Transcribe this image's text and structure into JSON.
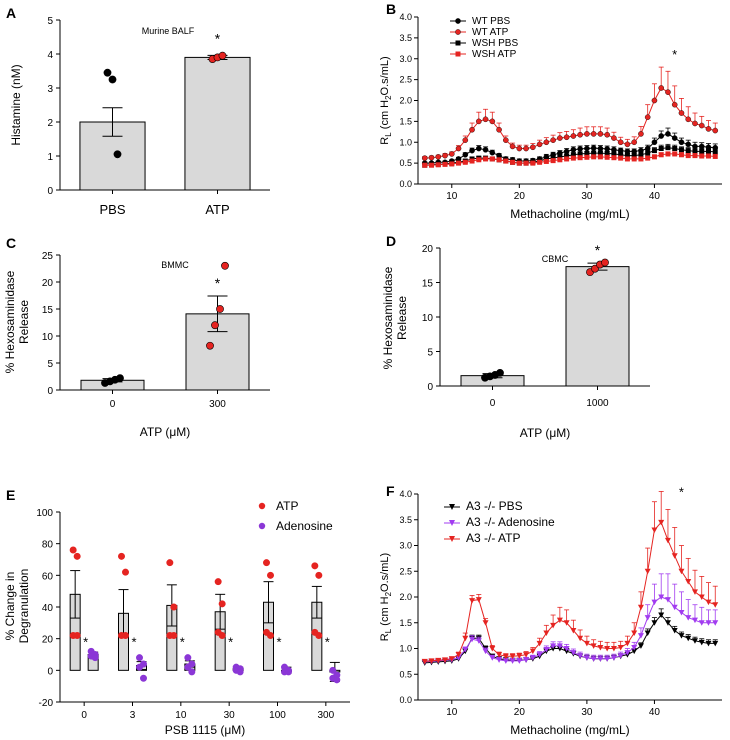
{
  "chart_data": [
    {
      "panel": "A",
      "type": "bar",
      "title": "Murine BALF",
      "ylabel": "Histamine (nM)",
      "xlabel": "",
      "ylim": [
        0,
        5
      ],
      "yticks": [
        0,
        1,
        2,
        3,
        4,
        5
      ],
      "categories": [
        "PBS",
        "ATP"
      ],
      "values": [
        2.0,
        3.9
      ],
      "errors": [
        0.42,
        0.06
      ],
      "points": [
        [
          3.45,
          3.25,
          1.05
        ],
        [
          3.85,
          3.9,
          3.95
        ]
      ],
      "point_colors": [
        "#000000",
        "#e52421"
      ],
      "annotations": [
        "",
        "*"
      ]
    },
    {
      "panel": "B",
      "type": "line",
      "title": "",
      "ylabel_main": "R",
      "ylabel_sub": "L",
      "ylabel_rest": " (cm H",
      "ylabel_sub2": "2",
      "ylabel_end": "O.s/mL)",
      "xlabel": "Methacholine (mg/mL)",
      "xlim": [
        5,
        50
      ],
      "ylim": [
        0,
        4.0
      ],
      "xticks": [
        10,
        20,
        30,
        40
      ],
      "yticks": [
        "0.0",
        "0.5",
        "1.0",
        "1.5",
        "2.0",
        "2.5",
        "3.0",
        "3.5",
        "4.0"
      ],
      "x": [
        6,
        7,
        8,
        9,
        10,
        11,
        12,
        13,
        14,
        15,
        16,
        17,
        18,
        19,
        20,
        21,
        22,
        23,
        24,
        25,
        26,
        27,
        28,
        29,
        30,
        31,
        32,
        33,
        34,
        35,
        36,
        37,
        38,
        39,
        40,
        41,
        42,
        43,
        44,
        45,
        46,
        47,
        48,
        49
      ],
      "series": [
        {
          "name": "WT PBS",
          "color": "#000000",
          "marker": "circle",
          "values": [
            0.5,
            0.5,
            0.52,
            0.52,
            0.55,
            0.6,
            0.7,
            0.8,
            0.85,
            0.82,
            0.75,
            0.68,
            0.6,
            0.58,
            0.55,
            0.55,
            0.56,
            0.6,
            0.65,
            0.7,
            0.74,
            0.78,
            0.82,
            0.84,
            0.85,
            0.86,
            0.85,
            0.84,
            0.82,
            0.8,
            0.78,
            0.78,
            0.8,
            0.85,
            1.0,
            1.15,
            1.2,
            1.1,
            1.0,
            0.95,
            0.9,
            0.9,
            0.88,
            0.87
          ],
          "errors": [
            0.03,
            0.03,
            0.03,
            0.03,
            0.03,
            0.04,
            0.05,
            0.06,
            0.07,
            0.07,
            0.06,
            0.05,
            0.05,
            0.05,
            0.05,
            0.05,
            0.05,
            0.05,
            0.06,
            0.06,
            0.06,
            0.07,
            0.07,
            0.07,
            0.07,
            0.07,
            0.07,
            0.07,
            0.07,
            0.06,
            0.06,
            0.06,
            0.07,
            0.08,
            0.1,
            0.12,
            0.14,
            0.12,
            0.1,
            0.1,
            0.1,
            0.09,
            0.09,
            0.09
          ]
        },
        {
          "name": "WT ATP",
          "color": "#e52421",
          "marker": "circle",
          "values": [
            0.62,
            0.63,
            0.65,
            0.68,
            0.72,
            0.85,
            1.05,
            1.3,
            1.5,
            1.55,
            1.5,
            1.3,
            1.05,
            0.9,
            0.85,
            0.85,
            0.88,
            0.95,
            1.0,
            1.05,
            1.1,
            1.12,
            1.15,
            1.18,
            1.2,
            1.2,
            1.2,
            1.18,
            1.1,
            1.0,
            0.95,
            1.0,
            1.2,
            1.6,
            2.0,
            2.3,
            2.2,
            1.9,
            1.7,
            1.55,
            1.45,
            1.4,
            1.32,
            1.28
          ],
          "errors": [
            0.04,
            0.04,
            0.04,
            0.05,
            0.05,
            0.07,
            0.1,
            0.16,
            0.22,
            0.24,
            0.22,
            0.16,
            0.1,
            0.08,
            0.08,
            0.08,
            0.09,
            0.1,
            0.11,
            0.12,
            0.13,
            0.14,
            0.15,
            0.16,
            0.17,
            0.17,
            0.17,
            0.16,
            0.14,
            0.12,
            0.12,
            0.13,
            0.18,
            0.3,
            0.4,
            0.5,
            0.5,
            0.45,
            0.35,
            0.3,
            0.25,
            0.22,
            0.2,
            0.18
          ]
        },
        {
          "name": "WSH PBS",
          "color": "#000000",
          "marker": "square",
          "values": [
            0.45,
            0.46,
            0.47,
            0.48,
            0.5,
            0.52,
            0.55,
            0.6,
            0.62,
            0.62,
            0.6,
            0.58,
            0.55,
            0.52,
            0.5,
            0.5,
            0.52,
            0.55,
            0.6,
            0.62,
            0.65,
            0.67,
            0.7,
            0.72,
            0.73,
            0.74,
            0.74,
            0.73,
            0.72,
            0.7,
            0.68,
            0.68,
            0.7,
            0.74,
            0.8,
            0.85,
            0.87,
            0.85,
            0.82,
            0.8,
            0.78,
            0.78,
            0.78,
            0.77
          ],
          "errors": [
            0.02,
            0.02,
            0.02,
            0.02,
            0.03,
            0.03,
            0.03,
            0.04,
            0.04,
            0.04,
            0.04,
            0.04,
            0.04,
            0.04,
            0.04,
            0.04,
            0.04,
            0.05,
            0.05,
            0.05,
            0.05,
            0.05,
            0.05,
            0.05,
            0.05,
            0.05,
            0.05,
            0.05,
            0.05,
            0.05,
            0.05,
            0.05,
            0.05,
            0.06,
            0.07,
            0.08,
            0.08,
            0.08,
            0.07,
            0.07,
            0.07,
            0.07,
            0.07,
            0.07
          ]
        },
        {
          "name": "WSH ATP",
          "color": "#e52421",
          "marker": "square",
          "values": [
            0.45,
            0.45,
            0.46,
            0.47,
            0.48,
            0.5,
            0.52,
            0.55,
            0.58,
            0.6,
            0.6,
            0.58,
            0.55,
            0.52,
            0.5,
            0.5,
            0.5,
            0.52,
            0.54,
            0.56,
            0.58,
            0.6,
            0.62,
            0.63,
            0.64,
            0.65,
            0.65,
            0.64,
            0.63,
            0.62,
            0.6,
            0.6,
            0.6,
            0.62,
            0.65,
            0.7,
            0.72,
            0.72,
            0.7,
            0.68,
            0.68,
            0.67,
            0.67,
            0.66
          ],
          "errors": [
            0.02,
            0.02,
            0.02,
            0.02,
            0.02,
            0.02,
            0.03,
            0.03,
            0.03,
            0.03,
            0.03,
            0.03,
            0.03,
            0.03,
            0.03,
            0.03,
            0.03,
            0.03,
            0.03,
            0.03,
            0.03,
            0.03,
            0.04,
            0.04,
            0.04,
            0.04,
            0.04,
            0.04,
            0.04,
            0.04,
            0.04,
            0.04,
            0.04,
            0.04,
            0.05,
            0.05,
            0.05,
            0.05,
            0.05,
            0.05,
            0.05,
            0.05,
            0.05,
            0.05
          ]
        }
      ],
      "annotations": [
        {
          "x": 43,
          "y": 3.0,
          "text": "*"
        }
      ]
    },
    {
      "panel": "C",
      "type": "bar",
      "title": "BMMC",
      "ylabel": "% Hexosaminidase Release",
      "ylabel_line1": "% Hexosaminidase",
      "ylabel_line2": "Release",
      "xlabel": "ATP (μM)",
      "ylim": [
        0,
        25
      ],
      "yticks": [
        0,
        5,
        10,
        15,
        20,
        25
      ],
      "categories": [
        "0",
        "300"
      ],
      "values": [
        1.8,
        14.1
      ],
      "errors": [
        0.3,
        3.3
      ],
      "points": [
        [
          1.3,
          1.6,
          1.9,
          2.2
        ],
        [
          8.2,
          12.0,
          15.0,
          23.0
        ]
      ],
      "point_colors": [
        "#000000",
        "#e52421"
      ],
      "annotations": [
        "",
        "*"
      ]
    },
    {
      "panel": "D",
      "type": "bar",
      "title": "CBMC",
      "ylabel": "% Hexosaminidase Release",
      "ylabel_line1": "% Hexosaminidase",
      "ylabel_line2": "Release",
      "xlabel": "ATP (μM)",
      "ylim": [
        0,
        20
      ],
      "yticks": [
        0,
        5,
        10,
        15,
        20
      ],
      "categories": [
        "0",
        "1000"
      ],
      "values": [
        1.5,
        17.3
      ],
      "errors": [
        0.3,
        0.5
      ],
      "points": [
        [
          1.2,
          1.4,
          1.6,
          1.9
        ],
        [
          16.5,
          17.0,
          17.6,
          17.9
        ]
      ],
      "point_colors": [
        "#000000",
        "#e52421"
      ],
      "annotations": [
        "",
        "*"
      ]
    },
    {
      "panel": "E",
      "type": "bar",
      "title": "",
      "ylabel": "% Change in Degranulation",
      "ylabel_line1": "% Change in",
      "ylabel_line2": "Degranulation",
      "xlabel": "PSB 1115 (μM)",
      "ylim": [
        -20,
        100
      ],
      "yticks": [
        -20,
        0,
        20,
        40,
        60,
        80,
        100
      ],
      "categories": [
        "0",
        "3",
        "10",
        "30",
        "100",
        "300"
      ],
      "series": [
        {
          "name": "ATP",
          "color": "#e52421",
          "values": [
            48,
            36,
            41,
            37,
            43,
            43
          ],
          "errors": [
            15,
            15,
            13,
            11,
            13,
            10
          ],
          "points": [
            [
              76,
              72,
              22,
              22
            ],
            [
              72,
              62,
              22,
              22
            ],
            [
              68,
              40,
              22,
              22
            ],
            [
              56,
              42,
              24,
              22
            ],
            [
              68,
              60,
              24,
              22
            ],
            [
              66,
              60,
              24,
              22
            ]
          ]
        },
        {
          "name": "Adenosine",
          "color": "#8b37d6",
          "values": [
            10,
            3,
            4,
            1,
            0,
            -1
          ],
          "errors": [
            1.5,
            2.5,
            2,
            1,
            2,
            6
          ],
          "points": [
            [
              12,
              10,
              9,
              8
            ],
            [
              8,
              4,
              2,
              -5
            ],
            [
              8,
              4,
              2,
              -1
            ],
            [
              2,
              1,
              0,
              -1
            ],
            [
              2,
              0,
              -1,
              -1
            ],
            [
              0,
              -3,
              -5,
              -6
            ]
          ]
        }
      ],
      "annotations": [
        "*",
        "*",
        "*",
        "*",
        "*",
        "*"
      ],
      "legend": "top-right"
    },
    {
      "panel": "F",
      "type": "line",
      "title": "",
      "ylabel_main": "R",
      "ylabel_sub": "L",
      "ylabel_rest": " (cm H",
      "ylabel_sub2": "2",
      "ylabel_end": "O.s/mL)",
      "xlabel": "Methacholine (mg/mL)",
      "xlim": [
        5,
        50
      ],
      "ylim": [
        0,
        4.0
      ],
      "xticks": [
        10,
        20,
        30,
        40
      ],
      "yticks": [
        "0.0",
        "0.5",
        "1.0",
        "1.5",
        "2.0",
        "2.5",
        "3.0",
        "3.5",
        "4.0"
      ],
      "x": [
        6,
        7,
        8,
        9,
        10,
        11,
        12,
        13,
        14,
        15,
        16,
        17,
        18,
        19,
        20,
        21,
        22,
        23,
        24,
        25,
        26,
        27,
        28,
        29,
        30,
        31,
        32,
        33,
        34,
        35,
        36,
        37,
        38,
        39,
        40,
        41,
        42,
        43,
        44,
        45,
        46,
        47,
        48,
        49
      ],
      "series": [
        {
          "name": "A3 -/- PBS",
          "color": "#000000",
          "values": [
            0.72,
            0.73,
            0.74,
            0.75,
            0.76,
            0.8,
            0.95,
            1.2,
            1.2,
            1.0,
            0.85,
            0.8,
            0.78,
            0.77,
            0.77,
            0.78,
            0.8,
            0.85,
            0.95,
            1.0,
            1.0,
            0.95,
            0.9,
            0.85,
            0.82,
            0.8,
            0.8,
            0.8,
            0.82,
            0.85,
            0.88,
            0.95,
            1.05,
            1.3,
            1.5,
            1.65,
            1.5,
            1.35,
            1.25,
            1.2,
            1.15,
            1.12,
            1.1,
            1.1
          ],
          "errors": [
            0.03,
            0.03,
            0.03,
            0.03,
            0.03,
            0.03,
            0.05,
            0.06,
            0.06,
            0.05,
            0.04,
            0.04,
            0.04,
            0.04,
            0.04,
            0.04,
            0.04,
            0.05,
            0.05,
            0.05,
            0.05,
            0.05,
            0.05,
            0.05,
            0.05,
            0.05,
            0.05,
            0.05,
            0.05,
            0.05,
            0.05,
            0.05,
            0.06,
            0.08,
            0.1,
            0.12,
            0.1,
            0.08,
            0.07,
            0.07,
            0.07,
            0.07,
            0.07,
            0.07
          ]
        },
        {
          "name": "A3 -/- Adenosine",
          "color": "#a23cf0",
          "values": [
            0.74,
            0.75,
            0.76,
            0.77,
            0.78,
            0.82,
            0.98,
            1.18,
            1.15,
            0.95,
            0.82,
            0.78,
            0.76,
            0.76,
            0.76,
            0.78,
            0.82,
            0.88,
            0.98,
            1.05,
            1.05,
            1.0,
            0.92,
            0.86,
            0.82,
            0.8,
            0.8,
            0.8,
            0.82,
            0.86,
            0.92,
            1.02,
            1.25,
            1.6,
            1.9,
            2.0,
            1.95,
            1.8,
            1.7,
            1.6,
            1.55,
            1.5,
            1.5,
            1.5
          ],
          "errors": [
            0.03,
            0.03,
            0.03,
            0.03,
            0.03,
            0.04,
            0.05,
            0.07,
            0.07,
            0.06,
            0.05,
            0.05,
            0.05,
            0.05,
            0.05,
            0.05,
            0.05,
            0.06,
            0.07,
            0.08,
            0.08,
            0.08,
            0.07,
            0.07,
            0.07,
            0.07,
            0.07,
            0.07,
            0.07,
            0.07,
            0.08,
            0.1,
            0.15,
            0.25,
            0.35,
            0.45,
            0.5,
            0.45,
            0.4,
            0.35,
            0.3,
            0.3,
            0.25,
            0.25
          ]
        },
        {
          "name": "A3 -/- ATP",
          "color": "#e52421",
          "values": [
            0.75,
            0.76,
            0.77,
            0.78,
            0.8,
            0.88,
            1.2,
            1.93,
            1.95,
            1.5,
            1.0,
            0.88,
            0.85,
            0.85,
            0.86,
            0.88,
            0.95,
            1.1,
            1.3,
            1.45,
            1.55,
            1.5,
            1.35,
            1.2,
            1.1,
            1.05,
            1.02,
            1.0,
            1.0,
            1.02,
            1.1,
            1.3,
            1.8,
            2.5,
            3.3,
            3.45,
            3.1,
            2.8,
            2.5,
            2.3,
            2.1,
            2.0,
            1.9,
            1.85
          ],
          "errors": [
            0.03,
            0.03,
            0.03,
            0.03,
            0.04,
            0.05,
            0.1,
            0.1,
            0.1,
            0.08,
            0.06,
            0.05,
            0.05,
            0.05,
            0.05,
            0.06,
            0.07,
            0.1,
            0.15,
            0.2,
            0.25,
            0.25,
            0.2,
            0.16,
            0.14,
            0.12,
            0.12,
            0.12,
            0.12,
            0.12,
            0.14,
            0.2,
            0.3,
            0.45,
            0.55,
            0.6,
            0.6,
            0.55,
            0.5,
            0.45,
            0.42,
            0.4,
            0.38,
            0.36
          ]
        }
      ],
      "annotations": [
        {
          "x": 44,
          "y": 3.95,
          "text": "*"
        }
      ]
    }
  ],
  "panel_labels": [
    "A",
    "B",
    "C",
    "D",
    "E",
    "F"
  ]
}
